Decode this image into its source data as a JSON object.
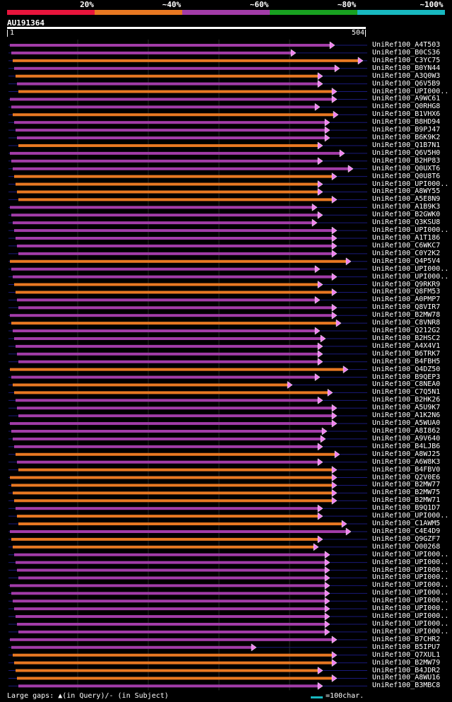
{
  "legend": {
    "labels": [
      "20%",
      "~40%",
      "~60%",
      "~80%",
      "~100%"
    ],
    "colors": [
      "#e8153c",
      "#e87822",
      "#a23ca8",
      "#18a020",
      "#18b8c0"
    ]
  },
  "query": {
    "name": "AU191364",
    "start": "1",
    "end": "504"
  },
  "hit_colors": {
    "orange": "#e87822",
    "purple": "#a23ca8",
    "line": "#1a1a7a",
    "gap": "#ffdc50"
  },
  "hits": [
    {
      "name": "UniRef100_A4T503",
      "color": "purple",
      "x2": 474
    },
    {
      "name": "UniRef100_B0CS36",
      "color": "purple",
      "x2": 419
    },
    {
      "name": "UniRef100_C3YC75",
      "color": "orange",
      "x2": 514
    },
    {
      "name": "UniRef100_B0YN44",
      "color": "purple",
      "x2": 481
    },
    {
      "name": "UniRef100_A3Q0W3",
      "color": "orange",
      "x2": 457
    },
    {
      "name": "UniRef100_Q6V5B9",
      "color": "purple",
      "x2": 457
    },
    {
      "name": "UniRef100_UPI000..",
      "color": "orange",
      "x2": 477
    },
    {
      "name": "UniRef100_A9WC61",
      "color": "purple",
      "x2": 477
    },
    {
      "name": "UniRef100_Q0RHG8",
      "color": "purple",
      "x2": 453
    },
    {
      "name": "UniRef100_B1VHX6",
      "color": "orange",
      "x2": 479
    },
    {
      "name": "UniRef100_B8HD94",
      "color": "purple",
      "x2": 467
    },
    {
      "name": "UniRef100_B9PJ47",
      "color": "purple",
      "x2": 467
    },
    {
      "name": "UniRef100_B6K9K2",
      "color": "purple",
      "x2": 467
    },
    {
      "name": "UniRef100_Q1B7N1",
      "color": "orange",
      "x2": 457
    },
    {
      "name": "UniRef100_Q6V5H0",
      "color": "purple",
      "x2": 488
    },
    {
      "name": "UniRef100_B2HP83",
      "color": "purple",
      "x2": 457
    },
    {
      "name": "UniRef100_Q0UXT6",
      "color": "purple",
      "x2": 500
    },
    {
      "name": "UniRef100_Q0U8T6",
      "color": "orange",
      "x2": 477
    },
    {
      "name": "UniRef100_UPI000..",
      "color": "orange",
      "x2": 457
    },
    {
      "name": "UniRef100_A8WY55",
      "color": "orange",
      "x2": 457
    },
    {
      "name": "UniRef100_A5E8N9",
      "color": "orange",
      "x2": 477
    },
    {
      "name": "UniRef100_A1B9K3",
      "color": "purple",
      "x2": 449
    },
    {
      "name": "UniRef100_B2GWK0",
      "color": "purple",
      "x2": 457
    },
    {
      "name": "UniRef100_Q3KSU8",
      "color": "purple",
      "x2": 449
    },
    {
      "name": "UniRef100_UPI000..",
      "color": "purple",
      "x2": 477
    },
    {
      "name": "UniRef100_A1T186",
      "color": "purple",
      "x2": 477
    },
    {
      "name": "UniRef100_C6WKC7",
      "color": "purple",
      "x2": 477
    },
    {
      "name": "UniRef100_C0Y2K2",
      "color": "purple",
      "x2": 477
    },
    {
      "name": "UniRef100_Q4P5V4",
      "color": "orange",
      "x2": 497
    },
    {
      "name": "UniRef100_UPI000..",
      "color": "purple",
      "x2": 453
    },
    {
      "name": "UniRef100_UPI000..",
      "color": "purple",
      "x2": 477
    },
    {
      "name": "UniRef100_Q9RKR9",
      "color": "orange",
      "x2": 457
    },
    {
      "name": "UniRef100_Q8FM53",
      "color": "orange",
      "x2": 477
    },
    {
      "name": "UniRef100_A0PMP7",
      "color": "purple",
      "x2": 453
    },
    {
      "name": "UniRef100_Q8VIR7",
      "color": "purple",
      "x2": 477
    },
    {
      "name": "UniRef100_B2MW78",
      "color": "purple",
      "x2": 477
    },
    {
      "name": "UniRef100_C8VNR8",
      "color": "orange",
      "x2": 483
    },
    {
      "name": "UniRef100_Q212G2",
      "color": "purple",
      "x2": 453
    },
    {
      "name": "UniRef100_B2HSC2",
      "color": "purple",
      "x2": 461
    },
    {
      "name": "UniRef100_A4X4V1",
      "color": "purple",
      "x2": 457
    },
    {
      "name": "UniRef100_B6TRK7",
      "color": "purple",
      "x2": 457
    },
    {
      "name": "UniRef100_B4FBH5",
      "color": "purple",
      "x2": 457
    },
    {
      "name": "UniRef100_Q4DZ50",
      "color": "orange",
      "x2": 493
    },
    {
      "name": "UniRef100_B9QEP3",
      "color": "purple",
      "x2": 453
    },
    {
      "name": "UniRef100_C8NEA0",
      "color": "orange",
      "x2": 414
    },
    {
      "name": "UniRef100_C7Q5N1",
      "color": "orange",
      "x2": 471
    },
    {
      "name": "UniRef100_B2HK26",
      "color": "purple",
      "x2": 457
    },
    {
      "name": "UniRef100_A5U9K7",
      "color": "purple",
      "x2": 477
    },
    {
      "name": "UniRef100_A1K2N6",
      "color": "purple",
      "x2": 477
    },
    {
      "name": "UniRef100_A5WUA0",
      "color": "purple",
      "x2": 477
    },
    {
      "name": "UniRef100_A8I862",
      "color": "purple",
      "x2": 463
    },
    {
      "name": "UniRef100_A9V640",
      "color": "purple",
      "x2": 461
    },
    {
      "name": "UniRef100_B4LJB6",
      "color": "purple",
      "x2": 457
    },
    {
      "name": "UniRef100_A8WJ25",
      "color": "orange",
      "x2": 481
    },
    {
      "name": "UniRef100_A6W8K3",
      "color": "purple",
      "x2": 457
    },
    {
      "name": "UniRef100_B4FBV0",
      "color": "orange",
      "x2": 477
    },
    {
      "name": "UniRef100_Q2V0E6",
      "color": "orange",
      "x2": 477
    },
    {
      "name": "UniRef100_B2MW77",
      "color": "orange",
      "x2": 477
    },
    {
      "name": "UniRef100_B2MW75",
      "color": "orange",
      "x2": 477
    },
    {
      "name": "UniRef100_B2MW71",
      "color": "orange",
      "x2": 477
    },
    {
      "name": "UniRef100_B9Q1D7",
      "color": "purple",
      "x2": 457
    },
    {
      "name": "UniRef100_UPI000..",
      "color": "orange",
      "x2": 457
    },
    {
      "name": "UniRef100_C1AWM5",
      "color": "orange",
      "x2": 491
    },
    {
      "name": "UniRef100_C4E4D9",
      "color": "purple",
      "x2": 497
    },
    {
      "name": "UniRef100_Q9GZF7",
      "color": "orange",
      "x2": 457
    },
    {
      "name": "UniRef100_O00268",
      "color": "orange",
      "x2": 451
    },
    {
      "name": "UniRef100_UPI000..",
      "color": "purple",
      "x2": 467
    },
    {
      "name": "UniRef100_UPI000..",
      "color": "purple",
      "x2": 467
    },
    {
      "name": "UniRef100_UPI000..",
      "color": "purple",
      "x2": 467
    },
    {
      "name": "UniRef100_UPI000..",
      "color": "purple",
      "x2": 467
    },
    {
      "name": "UniRef100_UPI000..",
      "color": "purple",
      "x2": 467
    },
    {
      "name": "UniRef100_UPI000..",
      "color": "purple",
      "x2": 467
    },
    {
      "name": "UniRef100_UPI000..",
      "color": "purple",
      "x2": 467
    },
    {
      "name": "UniRef100_UPI000..",
      "color": "purple",
      "x2": 467
    },
    {
      "name": "UniRef100_UPI000..",
      "color": "purple",
      "x2": 467
    },
    {
      "name": "UniRef100_UPI000..",
      "color": "purple",
      "x2": 467
    },
    {
      "name": "UniRef100_UPI000..",
      "color": "purple",
      "x2": 467
    },
    {
      "name": "UniRef100_B7CHR2",
      "color": "purple",
      "x2": 477
    },
    {
      "name": "UniRef100_B5IPU7",
      "color": "purple",
      "x2": 363
    },
    {
      "name": "UniRef100_Q7XUL1",
      "color": "orange",
      "x2": 477
    },
    {
      "name": "UniRef100_B2MW79",
      "color": "orange",
      "x2": 477
    },
    {
      "name": "UniRef100_B4JDR2",
      "color": "orange",
      "x2": 457
    },
    {
      "name": "UniRef100_A8WU16",
      "color": "orange",
      "x2": 477
    },
    {
      "name": "UniRef100_B3MBC8",
      "color": "purple",
      "x2": 457
    }
  ],
  "footer": {
    "left": "Large gaps: ▲(in Query)/- (in Subject)",
    "right": "=100char."
  }
}
